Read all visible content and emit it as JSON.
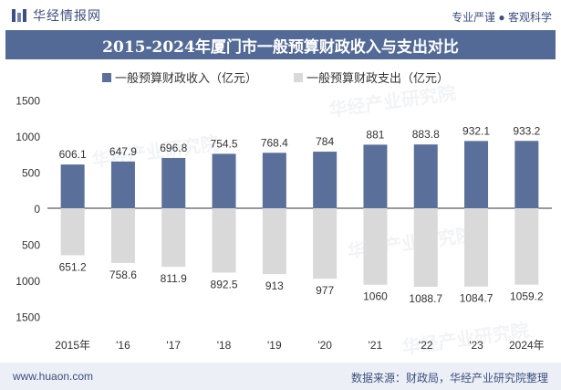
{
  "header": {
    "brand": "华经情报网",
    "tagline": "专业严谨 ● 客观科学"
  },
  "title": "2015-2024年厦门市一般预算财政收入与支出对比",
  "footer": {
    "url": "www.huaon.com",
    "source": "数据来源：财政局，华经产业研究院整理"
  },
  "watermark": "华经产业研究院",
  "colors": {
    "income": "#5a6f9a",
    "expense": "#d9d9d9",
    "title_bg": "#536a97",
    "brand": "#3c4f80"
  },
  "chart_data": {
    "type": "bar",
    "categories": [
      "2015年",
      "'16",
      "'17",
      "'18",
      "'19",
      "'20",
      "'21",
      "'22",
      "'23",
      "2024年"
    ],
    "series": [
      {
        "name": "一般预算财政收入（亿元）",
        "values": [
          606.1,
          647.9,
          696.8,
          754.5,
          768.4,
          784,
          881,
          883.8,
          932.1,
          933.2
        ],
        "labels": [
          "606.1",
          "647.9",
          "696.8",
          "754.5",
          "768.4",
          "784",
          "881",
          "883.8",
          "932.1",
          "933.2"
        ]
      },
      {
        "name": "一般预算财政支出（亿元）",
        "values": [
          651.2,
          758.6,
          811.9,
          892.5,
          913,
          977,
          1060,
          1088.7,
          1084.7,
          1059.2
        ],
        "labels": [
          "651.2",
          "758.6",
          "811.9",
          "892.5",
          "913",
          "977",
          "1060",
          "1088.7",
          "1084.7",
          "1059.2"
        ]
      }
    ],
    "yticks": [
      1500,
      1000,
      500,
      0,
      500,
      1000,
      1500
    ],
    "ylim": [
      -1500,
      1500
    ],
    "legend": "top-center",
    "grid": false
  }
}
